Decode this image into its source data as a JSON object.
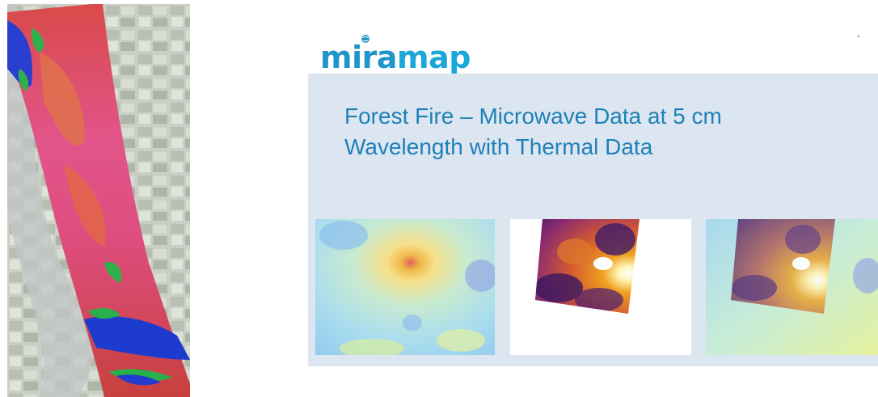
{
  "logo": {
    "part1": "mira",
    "part2": "map"
  },
  "slide": {
    "title_line1": "Forest Fire – Microwave Data at 5 cm",
    "title_line2": "Wavelength with Thermal Data"
  },
  "images": [
    {
      "name": "aerial-strip-overlay"
    },
    {
      "name": "microwave-data-map"
    },
    {
      "name": "thermal-data-map"
    },
    {
      "name": "combined-microwave-thermal-map"
    }
  ],
  "colors": {
    "panel": "#dce6f1",
    "title": "#1f80b8",
    "logo": "#1f95c8"
  }
}
